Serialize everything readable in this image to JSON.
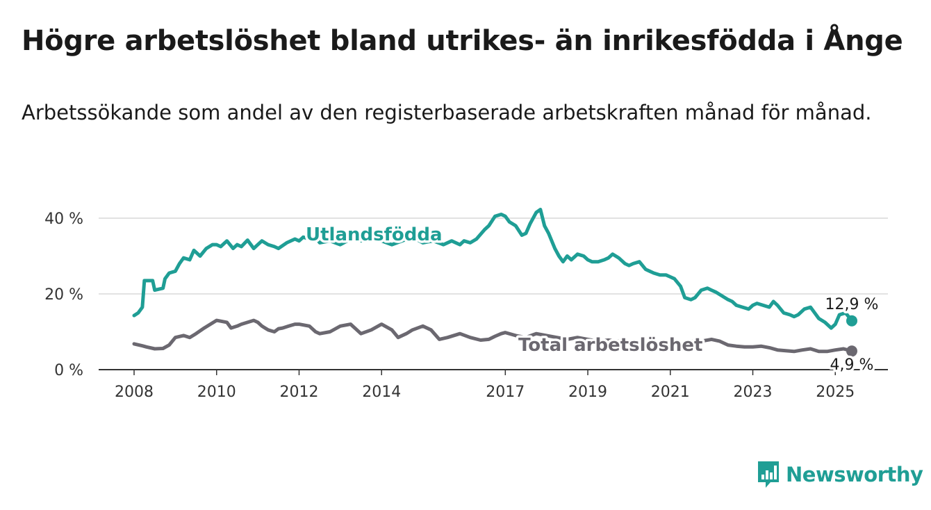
{
  "title": "Högre arbetslöshet bland utrikes- än inrikesfödda i Ånge",
  "subtitle": "Arbetssökande som andel av den registerbaserade arbetskraften månad för månad.",
  "brand": {
    "name": "Newsworthy",
    "color": "#1f9e95",
    "icon": "newsworthy-chart-logo-icon"
  },
  "chart_data": {
    "type": "line",
    "ylim": [
      0,
      45
    ],
    "xlim": [
      2008.0,
      2025.4
    ],
    "y_ticks": [
      {
        "value": 0,
        "label": "0 %"
      },
      {
        "value": 20,
        "label": "20 %"
      },
      {
        "value": 40,
        "label": "40 %"
      }
    ],
    "x_ticks": [
      {
        "value": 2008,
        "label": "2008"
      },
      {
        "value": 2010,
        "label": "2010"
      },
      {
        "value": 2012,
        "label": "2012"
      },
      {
        "value": 2014,
        "label": "2014"
      },
      {
        "value": 2017,
        "label": "2017"
      },
      {
        "value": 2019,
        "label": "2019"
      },
      {
        "value": 2021,
        "label": "2021"
      },
      {
        "value": 2023,
        "label": "2023"
      },
      {
        "value": 2025,
        "label": "2025"
      }
    ],
    "grid": true,
    "series": [
      {
        "name": "Utlandsfödda",
        "color": "#1f9e95",
        "end_label": "12,9 %",
        "x": [
          2008.0,
          2008.1,
          2008.2,
          2008.25,
          2008.45,
          2008.5,
          2008.7,
          2008.75,
          2008.85,
          2009.0,
          2009.1,
          2009.2,
          2009.35,
          2009.45,
          2009.6,
          2009.75,
          2009.9,
          2010.0,
          2010.1,
          2010.25,
          2010.4,
          2010.5,
          2010.6,
          2010.75,
          2010.9,
          2011.0,
          2011.1,
          2011.25,
          2011.4,
          2011.5,
          2011.7,
          2011.9,
          2012.0,
          2012.1,
          2012.25,
          2012.4,
          2012.5,
          2012.75,
          2013.0,
          2013.25,
          2013.5,
          2013.75,
          2014.0,
          2014.25,
          2014.5,
          2014.75,
          2015.0,
          2015.25,
          2015.5,
          2015.7,
          2015.9,
          2016.0,
          2016.15,
          2016.3,
          2016.5,
          2016.6,
          2016.75,
          2016.9,
          2017.0,
          2017.1,
          2017.25,
          2017.4,
          2017.5,
          2017.6,
          2017.75,
          2017.85,
          2017.95,
          2018.05,
          2018.2,
          2018.3,
          2018.4,
          2018.5,
          2018.6,
          2018.75,
          2018.9,
          2019.0,
          2019.1,
          2019.25,
          2019.4,
          2019.5,
          2019.6,
          2019.75,
          2019.9,
          2020.0,
          2020.1,
          2020.25,
          2020.4,
          2020.5,
          2020.6,
          2020.75,
          2020.9,
          2021.0,
          2021.1,
          2021.25,
          2021.35,
          2021.5,
          2021.6,
          2021.75,
          2021.9,
          2022.0,
          2022.1,
          2022.25,
          2022.4,
          2022.5,
          2022.6,
          2022.75,
          2022.9,
          2023.0,
          2023.1,
          2023.25,
          2023.4,
          2023.5,
          2023.6,
          2023.75,
          2023.9,
          2024.0,
          2024.1,
          2024.25,
          2024.4,
          2024.5,
          2024.6,
          2024.75,
          2024.9,
          2025.0,
          2025.1,
          2025.25,
          2025.4
        ],
        "values": [
          14.3,
          15.0,
          16.5,
          23.5,
          23.5,
          21.0,
          21.5,
          24.0,
          25.5,
          26.0,
          28.0,
          29.5,
          29.0,
          31.5,
          30.0,
          32.0,
          33.0,
          33.0,
          32.5,
          34.0,
          32.0,
          33.0,
          32.5,
          34.2,
          32.0,
          33.0,
          34.0,
          33.0,
          32.5,
          32.0,
          33.5,
          34.5,
          34.0,
          35.0,
          34.5,
          35.0,
          33.5,
          34.0,
          33.0,
          34.5,
          34.0,
          35.0,
          34.0,
          33.0,
          34.0,
          35.0,
          33.5,
          34.0,
          33.0,
          34.0,
          33.0,
          34.0,
          33.5,
          34.5,
          37.0,
          38.0,
          40.5,
          41.0,
          40.5,
          39.0,
          38.0,
          35.5,
          36.0,
          38.5,
          41.5,
          42.3,
          38.0,
          36.0,
          32.0,
          30.0,
          28.5,
          30.0,
          29.0,
          30.5,
          30.0,
          29.0,
          28.5,
          28.5,
          29.0,
          29.5,
          30.5,
          29.5,
          28.0,
          27.5,
          28.0,
          28.5,
          26.5,
          26.0,
          25.5,
          25.0,
          25.0,
          24.5,
          24.0,
          22.0,
          19.0,
          18.5,
          19.0,
          21.0,
          21.5,
          21.0,
          20.5,
          19.5,
          18.5,
          18.0,
          17.0,
          16.5,
          16.0,
          17.0,
          17.5,
          17.0,
          16.5,
          18.0,
          17.0,
          15.0,
          14.5,
          14.0,
          14.5,
          16.0,
          16.5,
          15.0,
          13.5,
          12.5,
          11.0,
          12.0,
          14.5,
          15.0,
          12.9
        ]
      },
      {
        "name": "Total arbetslöshet",
        "color": "#6b6870",
        "end_label": "4,9 %",
        "x": [
          2008.0,
          2008.2,
          2008.3,
          2008.5,
          2008.7,
          2008.85,
          2009.0,
          2009.2,
          2009.35,
          2009.5,
          2009.7,
          2009.85,
          2010.0,
          2010.1,
          2010.25,
          2010.35,
          2010.5,
          2010.6,
          2010.75,
          2010.9,
          2011.0,
          2011.1,
          2011.25,
          2011.4,
          2011.5,
          2011.6,
          2011.75,
          2011.9,
          2012.0,
          2012.25,
          2012.4,
          2012.5,
          2012.75,
          2013.0,
          2013.25,
          2013.5,
          2013.75,
          2014.0,
          2014.25,
          2014.4,
          2014.6,
          2014.75,
          2015.0,
          2015.2,
          2015.4,
          2015.6,
          2015.9,
          2016.15,
          2016.4,
          2016.6,
          2016.75,
          2016.9,
          2017.0,
          2017.25,
          2017.5,
          2017.75,
          2018.0,
          2018.25,
          2018.5,
          2018.75,
          2019.0,
          2019.25,
          2019.5,
          2019.75,
          2020.0,
          2020.25,
          2020.5,
          2020.75,
          2021.0,
          2021.25,
          2021.5,
          2021.75,
          2022.0,
          2022.2,
          2022.4,
          2022.6,
          2022.8,
          2023.0,
          2023.2,
          2023.4,
          2023.6,
          2023.8,
          2024.0,
          2024.2,
          2024.4,
          2024.6,
          2024.8,
          2025.0,
          2025.2,
          2025.4
        ],
        "values": [
          6.8,
          6.3,
          6.0,
          5.5,
          5.6,
          6.5,
          8.5,
          9.0,
          8.5,
          9.5,
          11.0,
          12.0,
          13.0,
          12.8,
          12.5,
          11.0,
          11.5,
          12.0,
          12.5,
          13.0,
          12.5,
          11.5,
          10.5,
          10.0,
          10.8,
          11.0,
          11.5,
          12.0,
          12.0,
          11.5,
          10.0,
          9.5,
          10.0,
          11.5,
          12.0,
          9.5,
          10.5,
          12.0,
          10.5,
          8.5,
          9.5,
          10.5,
          11.5,
          10.5,
          8.0,
          8.5,
          9.5,
          8.5,
          7.8,
          8.0,
          8.8,
          9.5,
          9.8,
          9.0,
          8.5,
          9.5,
          9.0,
          8.5,
          8.0,
          8.5,
          8.0,
          7.5,
          7.8,
          7.5,
          7.0,
          7.5,
          7.0,
          7.2,
          7.5,
          7.0,
          7.5,
          7.5,
          8.0,
          7.5,
          6.5,
          6.2,
          6.0,
          6.0,
          6.2,
          5.8,
          5.2,
          5.0,
          4.8,
          5.2,
          5.5,
          4.8,
          4.8,
          5.2,
          5.5,
          4.9
        ]
      }
    ]
  }
}
